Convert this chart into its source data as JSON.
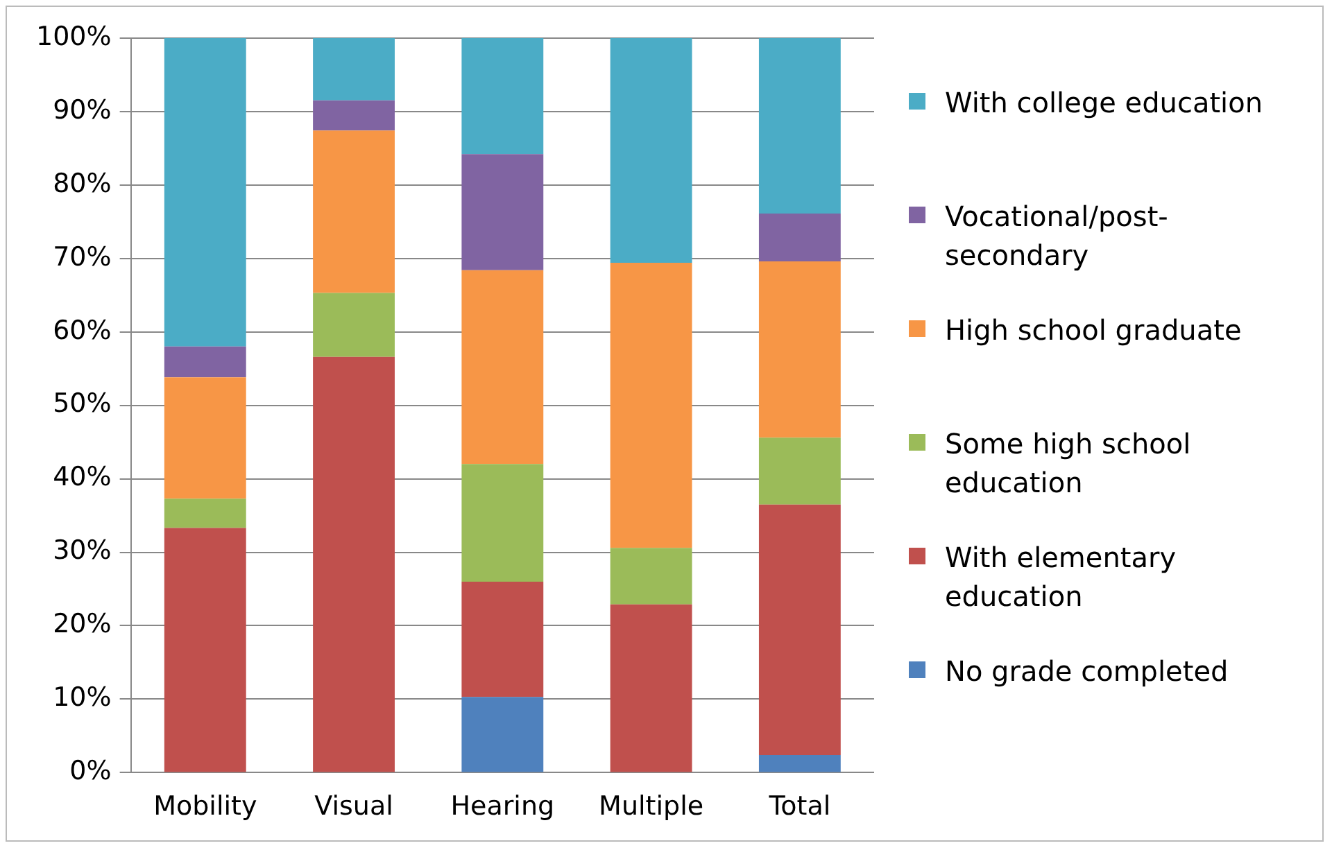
{
  "chart_data": {
    "type": "bar",
    "stacked": true,
    "categories": [
      "Mobility",
      "Visual",
      "Hearing",
      "Multiple",
      "Total"
    ],
    "series": [
      {
        "name": "No grade completed",
        "color": "#4f81bd",
        "values": [
          0,
          0,
          10.3,
          0,
          2.4
        ]
      },
      {
        "name": "With elementary education",
        "color": "#c0504d",
        "values": [
          33.3,
          56.6,
          15.7,
          22.9,
          34.1
        ]
      },
      {
        "name": "Some high school education",
        "color": "#9bbb59",
        "values": [
          4,
          8.7,
          16,
          7.7,
          9.1
        ]
      },
      {
        "name": "High school graduate",
        "color": "#f79646",
        "values": [
          16.5,
          22.1,
          26.4,
          38.8,
          24
        ]
      },
      {
        "name": "Vocational/post-secondary",
        "color": "#8064a2",
        "values": [
          4.2,
          4.1,
          15.8,
          0,
          6.5
        ]
      },
      {
        "name": "With college education",
        "color": "#4bacc6",
        "values": [
          42,
          8.5,
          15.8,
          30.6,
          23.9
        ]
      }
    ],
    "ylim": [
      0,
      100
    ],
    "yticks": [
      {
        "value": 0,
        "label": "0%"
      },
      {
        "value": 10,
        "label": "10%"
      },
      {
        "value": 20,
        "label": "20%"
      },
      {
        "value": 30,
        "label": "30%"
      },
      {
        "value": 40,
        "label": "40%"
      },
      {
        "value": 50,
        "label": "50%"
      },
      {
        "value": 60,
        "label": "60%"
      },
      {
        "value": 70,
        "label": "70%"
      },
      {
        "value": 80,
        "label": "80%"
      },
      {
        "value": 90,
        "label": "90%"
      },
      {
        "value": 100,
        "label": "100%"
      }
    ],
    "grid": "y",
    "legend": "right"
  }
}
